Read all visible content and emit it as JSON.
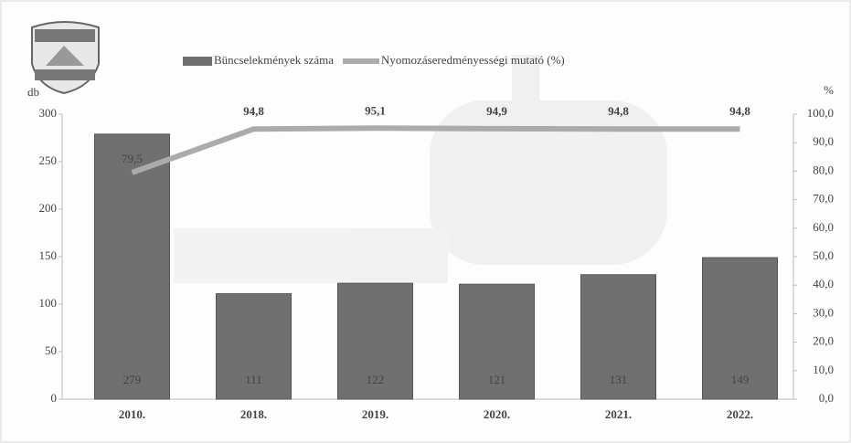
{
  "chart_data": {
    "type": "bar",
    "categories": [
      "2010.",
      "2018.",
      "2019.",
      "2020.",
      "2021.",
      "2022."
    ],
    "series": [
      {
        "name": "Büncselekmények száma",
        "type": "bar",
        "color": "#707070",
        "values": [
          279,
          111,
          122,
          121,
          131,
          149
        ]
      },
      {
        "name": "Nyomozáseredményességi mutató (%)",
        "type": "line",
        "axis": "y2",
        "color": "#ababab",
        "values": [
          79.5,
          94.8,
          95.1,
          94.9,
          94.8,
          94.8
        ],
        "value_labels": [
          "79,5",
          "94,8",
          "95,1",
          "94,9",
          "94,8",
          "94,8"
        ]
      }
    ],
    "ylabel": "db",
    "y2label": "%",
    "ylim": [
      0,
      300
    ],
    "yticks": [
      0,
      50,
      100,
      150,
      200,
      250,
      300
    ],
    "y2lim": [
      0,
      100
    ],
    "y2ticks": [
      {
        "value": 0,
        "label": "0,0"
      },
      {
        "value": 10,
        "label": "10,0"
      },
      {
        "value": 20,
        "label": "20,0"
      },
      {
        "value": 30,
        "label": "30,0"
      },
      {
        "value": 40,
        "label": "40,0"
      },
      {
        "value": 50,
        "label": "50,0"
      },
      {
        "value": 60,
        "label": "60,0"
      },
      {
        "value": 70,
        "label": "70,0"
      },
      {
        "value": 80,
        "label": "80,0"
      },
      {
        "value": 90,
        "label": "90,0"
      },
      {
        "value": 100,
        "label": "100,0"
      }
    ],
    "legend": "top"
  }
}
